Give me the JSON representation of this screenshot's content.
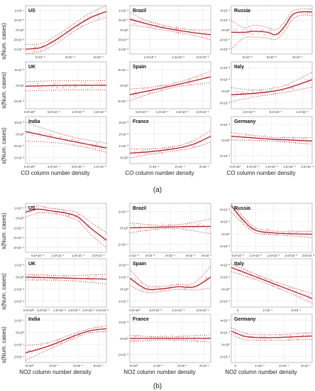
{
  "figure": {
    "panel_a_label": "(a)",
    "panel_b_label": "(b)",
    "ylabel": "s(Num. cases)",
    "xlabel_a": "CO column number density",
    "xlabel_b": "NO2 column number density"
  },
  "colors": {
    "fit_line": "#b22222",
    "ci_dots": "#b22222",
    "residuals": "#f4b6c8",
    "panel_bg": "#ffffff",
    "grid": "#e6e6e6",
    "frame": "#999999"
  },
  "chart_data": [
    {
      "type": "line",
      "group": "a",
      "title": "US",
      "x": [
        0,
        0.2,
        0.4,
        0.6,
        0.8,
        1
      ],
      "y": [
        0.1,
        0.14,
        0.32,
        0.55,
        0.75,
        0.88
      ],
      "upper": [
        0.2,
        0.22,
        0.4,
        0.63,
        0.85,
        1.0
      ],
      "lower": [
        0.0,
        0.06,
        0.24,
        0.47,
        0.65,
        0.76
      ],
      "yticks": [
        "-1×10⁻¹",
        "-5×10⁻²",
        "0×10⁰",
        "5×10⁻²",
        "1×10⁻¹"
      ],
      "xticks": [
        "2×10⁻⁵",
        "3×10⁻⁵",
        "4×10⁻⁵"
      ],
      "xtick_pos": [
        0.18,
        0.55,
        0.9
      ],
      "grid": true
    },
    {
      "type": "line",
      "group": "a",
      "title": "Brazil",
      "x": [
        0,
        0.2,
        0.4,
        0.6,
        0.8,
        1
      ],
      "y": [
        0.72,
        0.63,
        0.55,
        0.49,
        0.44,
        0.4
      ],
      "upper": [
        0.86,
        0.7,
        0.6,
        0.53,
        0.5,
        0.5
      ],
      "lower": [
        0.6,
        0.56,
        0.5,
        0.45,
        0.38,
        0.3
      ],
      "yticks": [
        "-1×10⁻²",
        "-5×10⁻³",
        "0×10⁰",
        "5×10⁻³",
        "1×10⁻²"
      ],
      "xticks": [
        "1.0×10⁻⁵",
        "1.5×10⁻⁵",
        "2.0×10⁻⁵"
      ],
      "xtick_pos": [
        0.25,
        0.6,
        0.9
      ],
      "grid": true
    },
    {
      "type": "line",
      "group": "a",
      "title": "Russia",
      "x": [
        0,
        0.15,
        0.3,
        0.45,
        0.55,
        0.65,
        0.75,
        0.85,
        1
      ],
      "y": [
        0.45,
        0.45,
        0.47,
        0.45,
        0.4,
        0.55,
        0.8,
        0.87,
        0.87
      ],
      "upper": [
        0.7,
        0.55,
        0.6,
        0.55,
        0.5,
        0.65,
        0.88,
        0.93,
        0.93
      ],
      "lower": [
        0.1,
        0.33,
        0.35,
        0.33,
        0.3,
        0.45,
        0.7,
        0.8,
        0.8
      ],
      "yticks": [
        "-4×10⁻²",
        "-2×10⁻²",
        "0×10⁰",
        "2×10⁻²",
        "4×10⁻²"
      ],
      "xticks": [
        "3×10⁻⁵",
        "6×10⁻⁵",
        "9×10⁻⁵"
      ],
      "xtick_pos": [
        0.2,
        0.5,
        0.82
      ],
      "grid": true
    },
    {
      "type": "line",
      "group": "a",
      "title": "UK",
      "x": [
        0,
        0.5,
        1
      ],
      "y": [
        0.48,
        0.5,
        0.5
      ],
      "upper": [
        0.58,
        0.6,
        0.6
      ],
      "lower": [
        0.38,
        0.4,
        0.4
      ],
      "yticks": [
        "-3×10⁻³",
        "0×10⁰",
        "3×10⁻³"
      ],
      "xticks": [
        "0.0×10⁰",
        "5.0×10⁻⁴",
        "1.0×10⁻³",
        "1.5×10⁻³"
      ],
      "xtick_pos": [
        0.05,
        0.35,
        0.65,
        0.92
      ],
      "grid": true
    },
    {
      "type": "line",
      "group": "a",
      "title": "Spain",
      "x": [
        0,
        0.5,
        1
      ],
      "y": [
        0.3,
        0.48,
        0.68
      ],
      "upper": [
        0.42,
        0.52,
        0.8
      ],
      "lower": [
        0.18,
        0.44,
        0.56
      ],
      "yticks": [
        "-5×10⁻⁴",
        "0×10⁰",
        "5×10⁻⁴"
      ],
      "xticks": [
        "5.0×10⁻⁵",
        "1.0×10⁻⁴",
        "1.5×10⁻⁴",
        "2.0×10⁻⁴"
      ],
      "xtick_pos": [
        0.15,
        0.4,
        0.65,
        0.9
      ],
      "grid": true
    },
    {
      "type": "line",
      "group": "a",
      "title": "Italy",
      "x": [
        0,
        0.3,
        0.6,
        0.8,
        1
      ],
      "y": [
        0.3,
        0.33,
        0.4,
        0.5,
        0.62
      ],
      "upper": [
        0.45,
        0.4,
        0.47,
        0.6,
        0.78
      ],
      "lower": [
        0.15,
        0.26,
        0.33,
        0.4,
        0.46
      ],
      "yticks": [
        "-5×10⁻³",
        "0×10⁰",
        "5×10⁻³",
        "1×10⁻²"
      ],
      "xticks": [
        "4.0×10⁻⁵",
        "8.0×10⁻⁵",
        "1.2×10⁻⁴"
      ],
      "xtick_pos": [
        0.22,
        0.55,
        0.88
      ],
      "grid": true
    },
    {
      "type": "line",
      "group": "a",
      "title": "India",
      "x": [
        0,
        0.5,
        1
      ],
      "y": [
        0.68,
        0.5,
        0.33
      ],
      "upper": [
        0.88,
        0.6,
        0.43
      ],
      "lower": [
        0.48,
        0.42,
        0.24
      ],
      "yticks": [
        "-1×10⁻²",
        "-5×10⁻³",
        "0×10⁰",
        "5×10⁻³"
      ],
      "xticks": [
        "0.0×10⁰",
        "4.0×10⁻⁴",
        "8.0×10⁻⁴",
        "1.2×10⁻³"
      ],
      "xtick_pos": [
        0.05,
        0.35,
        0.65,
        0.92
      ],
      "grid": true
    },
    {
      "type": "line",
      "group": "a",
      "title": "France",
      "x": [
        0,
        0.3,
        0.6,
        0.8,
        1
      ],
      "y": [
        0.22,
        0.26,
        0.33,
        0.42,
        0.58
      ],
      "upper": [
        0.32,
        0.31,
        0.38,
        0.5,
        0.7
      ],
      "lower": [
        0.12,
        0.21,
        0.28,
        0.34,
        0.46
      ],
      "yticks": [
        "0×10⁰",
        "1×10⁻³",
        "2×10⁻³",
        "3×10⁻³"
      ],
      "xticks": [
        "1×10⁻⁴",
        "2×10⁻⁴",
        "3×10⁻⁴"
      ],
      "xtick_pos": [
        0.3,
        0.62,
        0.92
      ],
      "grid": true
    },
    {
      "type": "line",
      "group": "a",
      "title": "Germany",
      "x": [
        0,
        0.5,
        1
      ],
      "y": [
        0.58,
        0.52,
        0.48
      ],
      "upper": [
        0.66,
        0.56,
        0.55
      ],
      "lower": [
        0.5,
        0.48,
        0.41
      ],
      "yticks": [
        "-2×10⁻³",
        "0×10⁰",
        "2×10⁻³"
      ],
      "xticks": [
        "0.0×10⁰",
        "5.0×10⁻⁵",
        "1.0×10⁻⁴",
        "1.5×10⁻⁴",
        "2.0×10⁻⁴"
      ],
      "xtick_pos": [
        0.05,
        0.27,
        0.5,
        0.72,
        0.94
      ],
      "grid": true
    },
    {
      "type": "line",
      "group": "b",
      "title": "US",
      "x": [
        0,
        0.15,
        0.3,
        0.5,
        0.65,
        0.8,
        1
      ],
      "y": [
        0.82,
        0.88,
        0.85,
        0.8,
        0.72,
        0.5,
        0.25
      ],
      "upper": [
        0.92,
        0.95,
        0.9,
        0.86,
        0.8,
        0.62,
        0.4
      ],
      "lower": [
        0.72,
        0.8,
        0.8,
        0.74,
        0.64,
        0.38,
        0.1
      ],
      "yticks": [
        "-3×10⁻⁴",
        "-2×10⁻⁴",
        "-1×10⁻⁴",
        "0×10⁰",
        "1×10⁻⁴"
      ],
      "xticks": [
        "5.0×10⁻⁵",
        "1.0×10⁻⁴",
        "1.5×10⁻⁴",
        "2.0×10⁻⁴"
      ],
      "xtick_pos": [
        0.15,
        0.4,
        0.65,
        0.9
      ],
      "grid": true
    },
    {
      "type": "line",
      "group": "b",
      "title": "Brazil",
      "x": [
        0,
        0.5,
        1
      ],
      "y": [
        0.5,
        0.52,
        0.53
      ],
      "upper": [
        0.6,
        0.55,
        0.68
      ],
      "lower": [
        0.4,
        0.49,
        0.38
      ],
      "yticks": [
        "-2×10⁻⁴",
        "0×10⁰",
        "2×10⁻⁴"
      ],
      "xticks": [
        "1×10⁻⁵",
        "2×10⁻⁵",
        "3×10⁻⁵",
        "4×10⁻⁵",
        "5×10⁻⁵"
      ],
      "xtick_pos": [
        0.05,
        0.25,
        0.5,
        0.75,
        0.95
      ],
      "grid": true
    },
    {
      "type": "line",
      "group": "b",
      "title": "Russia",
      "x": [
        0,
        0.15,
        0.3,
        0.5,
        0.7,
        1
      ],
      "y": [
        0.95,
        0.65,
        0.45,
        0.4,
        0.38,
        0.37
      ],
      "upper": [
        0.99,
        0.72,
        0.5,
        0.44,
        0.42,
        0.43
      ],
      "lower": [
        0.82,
        0.58,
        0.4,
        0.36,
        0.34,
        0.3
      ],
      "yticks": [
        "-4×10⁻²",
        "0×10⁰",
        "4×10⁻²",
        "8×10⁻²"
      ],
      "xticks": [
        "5.0×10⁻³",
        "1.0×10⁻²",
        "1.5×10⁻²",
        "2.0×10⁻²",
        "2.5×10⁻²"
      ],
      "xtick_pos": [
        0.08,
        0.3,
        0.52,
        0.74,
        0.95
      ],
      "grid": true
    },
    {
      "type": "line",
      "group": "b",
      "title": "UK",
      "x": [
        0,
        0.5,
        1
      ],
      "y": [
        0.62,
        0.6,
        0.58
      ],
      "upper": [
        0.68,
        0.65,
        0.68
      ],
      "lower": [
        0.56,
        0.55,
        0.48
      ],
      "yticks": [
        "-2×10⁻³",
        "-1×10⁻³",
        "0×10⁰",
        "1×10⁻³"
      ],
      "xticks": [
        "0.0×10⁰",
        "5.0×10⁻³",
        "1.0×10⁻²",
        "1.5×10⁻²",
        "2.0×10⁻²",
        "2.5×10⁻²"
      ],
      "xtick_pos": [
        0.04,
        0.22,
        0.42,
        0.6,
        0.78,
        0.95
      ],
      "grid": true
    },
    {
      "type": "line",
      "group": "b",
      "title": "Spain",
      "x": [
        0,
        0.2,
        0.4,
        0.6,
        0.8,
        1
      ],
      "y": [
        0.6,
        0.38,
        0.38,
        0.42,
        0.42,
        0.62
      ],
      "upper": [
        0.78,
        0.45,
        0.43,
        0.47,
        0.5,
        0.85
      ],
      "lower": [
        0.45,
        0.3,
        0.33,
        0.37,
        0.35,
        0.4
      ],
      "yticks": [
        "-1×10⁻²",
        "0×10⁰",
        "1×10⁻²",
        "2×10⁻²"
      ],
      "xticks": [
        "0.0×10⁰",
        "5.0×10⁻⁵",
        "1.0×10⁻⁴",
        "2.0×10⁻⁴"
      ],
      "xtick_pos": [
        0.06,
        0.32,
        0.6,
        0.9
      ],
      "grid": true
    },
    {
      "type": "line",
      "group": "b",
      "title": "Italy",
      "x": [
        0,
        0.5,
        1
      ],
      "y": [
        0.82,
        0.5,
        0.18
      ],
      "upper": [
        0.9,
        0.55,
        0.28
      ],
      "lower": [
        0.74,
        0.45,
        0.08
      ],
      "yticks": [
        "-2×10⁻²",
        "0×10⁰",
        "2×10⁻²",
        "4×10⁻²"
      ],
      "xticks": [
        "0",
        "1×10⁻¹",
        "2×10⁻¹"
      ],
      "xtick_pos": [
        0.08,
        0.45,
        0.8
      ],
      "grid": true
    },
    {
      "type": "line",
      "group": "b",
      "title": "India",
      "x": [
        0,
        0.3,
        0.6,
        0.8,
        1
      ],
      "y": [
        0.2,
        0.35,
        0.55,
        0.66,
        0.7
      ],
      "upper": [
        0.35,
        0.42,
        0.6,
        0.7,
        0.76
      ],
      "lower": [
        0.05,
        0.28,
        0.5,
        0.62,
        0.64
      ],
      "yticks": [
        "-2×10⁻¹",
        "-1×10⁻¹",
        "0×10⁰",
        "1×10⁻¹"
      ],
      "xticks": [
        "0×10⁰",
        "3×10⁻¹",
        "6×10⁻¹",
        "9×10⁻¹"
      ],
      "xtick_pos": [
        0.05,
        0.35,
        0.65,
        0.9
      ],
      "grid": true
    },
    {
      "type": "line",
      "group": "b",
      "title": "France",
      "x": [
        0,
        0.5,
        1
      ],
      "y": [
        0.5,
        0.5,
        0.5
      ],
      "upper": [
        0.56,
        0.53,
        0.58
      ],
      "lower": [
        0.44,
        0.47,
        0.42
      ],
      "yticks": [
        "-2×10⁻³",
        "0×10⁰",
        "2×10⁻³"
      ],
      "xticks": [
        "0×10⁰",
        "1×10⁻¹",
        "2×10⁻¹",
        "3×10⁻¹"
      ],
      "xtick_pos": [
        0.05,
        0.35,
        0.65,
        0.92
      ],
      "grid": true
    },
    {
      "type": "line",
      "group": "b",
      "title": "Germany",
      "x": [
        0,
        0.15,
        0.3,
        0.6,
        1
      ],
      "y": [
        0.65,
        0.55,
        0.52,
        0.52,
        0.55
      ],
      "upper": [
        0.72,
        0.62,
        0.58,
        0.58,
        0.62
      ],
      "lower": [
        0.58,
        0.48,
        0.46,
        0.46,
        0.48
      ],
      "yticks": [
        "-2×10⁻³",
        "0×10⁰",
        "2×10⁻³",
        "4×10⁻³"
      ],
      "xticks": [
        "0",
        "1×10⁻¹",
        "2×10⁻¹",
        "3×10⁻¹"
      ],
      "xtick_pos": [
        0.05,
        0.35,
        0.65,
        0.92
      ],
      "grid": true
    }
  ]
}
